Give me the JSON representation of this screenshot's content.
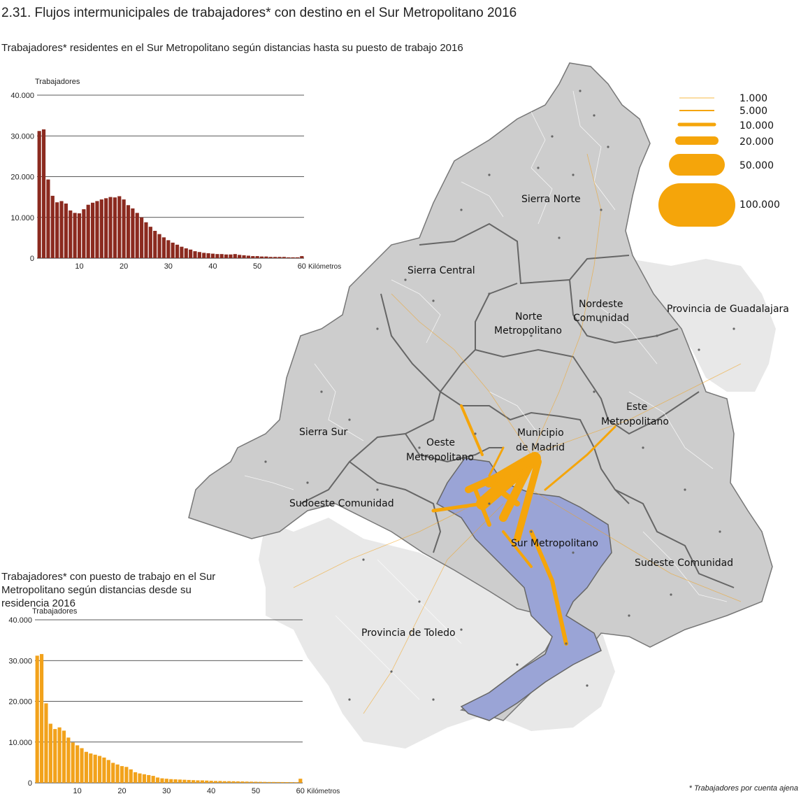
{
  "title": "2.31. Flujos intermunicipales de trabajadores* con destino en el Sur Metropolitano 2016",
  "footnote": "* Trabajadores por cuenta ajena",
  "colors": {
    "dark_bar": "#8b2a1f",
    "orange_bar": "#f2a21b",
    "flow": "#f5a50a",
    "sur": "#9aa4d6",
    "zone": "#cfcfcf",
    "outside": "#e9e9e9"
  },
  "chart_data": [
    {
      "type": "bar",
      "title": "Trabajadores* residentes en el Sur Metropolitano según distancias hasta su puesto de trabajo 2016",
      "ylabel": "Trabajadores",
      "xlabel": "Kilómetros",
      "ylim": [
        0,
        40000
      ],
      "yticks": [
        "0",
        "10.000",
        "20.000",
        "30.000",
        "40.000"
      ],
      "xticks": [
        "10",
        "20",
        "30",
        "40",
        "50",
        "60"
      ],
      "grid": true,
      "color": "#8b2a1f",
      "x": [
        1,
        2,
        3,
        4,
        5,
        6,
        7,
        8,
        9,
        10,
        11,
        12,
        13,
        14,
        15,
        16,
        17,
        18,
        19,
        20,
        21,
        22,
        23,
        24,
        25,
        26,
        27,
        28,
        29,
        30,
        31,
        32,
        33,
        34,
        35,
        36,
        37,
        38,
        39,
        40,
        41,
        42,
        43,
        44,
        45,
        46,
        47,
        48,
        49,
        50,
        51,
        52,
        53,
        54,
        55,
        56,
        57,
        58,
        59,
        60
      ],
      "values": [
        31200,
        31600,
        19300,
        15300,
        13700,
        14000,
        13400,
        11700,
        11100,
        11000,
        12000,
        13100,
        13600,
        14000,
        14400,
        14700,
        15000,
        14900,
        15200,
        14400,
        13000,
        12200,
        11100,
        10000,
        8800,
        7700,
        6700,
        5900,
        5100,
        4400,
        3800,
        3300,
        2800,
        2400,
        2100,
        1700,
        1500,
        1300,
        1200,
        1100,
        1000,
        1000,
        900,
        900,
        1000,
        800,
        700,
        600,
        500,
        500,
        400,
        400,
        300,
        300,
        300,
        300,
        200,
        200,
        200,
        500
      ]
    },
    {
      "type": "bar",
      "title": "Trabajadores* con puesto de trabajo en el Sur Metropolitano según distancias desde su residencia 2016",
      "ylabel": "Trabajadores",
      "xlabel": "Kilómetros",
      "ylim": [
        0,
        40000
      ],
      "yticks": [
        "0",
        "10.000",
        "20.000",
        "30.000",
        "40.000"
      ],
      "xticks": [
        "10",
        "20",
        "30",
        "40",
        "50",
        "60"
      ],
      "grid": true,
      "color": "#f2a21b",
      "x": [
        1,
        2,
        3,
        4,
        5,
        6,
        7,
        8,
        9,
        10,
        11,
        12,
        13,
        14,
        15,
        16,
        17,
        18,
        19,
        20,
        21,
        22,
        23,
        24,
        25,
        26,
        27,
        28,
        29,
        30,
        31,
        32,
        33,
        34,
        35,
        36,
        37,
        38,
        39,
        40,
        41,
        42,
        43,
        44,
        45,
        46,
        47,
        48,
        49,
        50,
        51,
        52,
        53,
        54,
        55,
        56,
        57,
        58,
        59,
        60
      ],
      "values": [
        31200,
        31600,
        19500,
        14500,
        13200,
        13600,
        12800,
        11100,
        9900,
        9200,
        8500,
        7600,
        7200,
        6900,
        6600,
        6200,
        5600,
        4900,
        4500,
        4100,
        3900,
        3300,
        2600,
        2300,
        2100,
        1900,
        1700,
        1300,
        1100,
        1000,
        900,
        850,
        800,
        750,
        700,
        650,
        600,
        600,
        550,
        500,
        450,
        450,
        400,
        400,
        380,
        350,
        330,
        300,
        280,
        260,
        240,
        220,
        200,
        200,
        190,
        180,
        170,
        160,
        150,
        1000
      ]
    }
  ],
  "map": {
    "zones": [
      {
        "name": "Sierra Norte"
      },
      {
        "name": "Sierra Central"
      },
      {
        "name": "Nordeste Comunidad"
      },
      {
        "name": "Norte Metropolitano"
      },
      {
        "name": "Provincia de Guadalajara"
      },
      {
        "name": "Este Metropolitano"
      },
      {
        "name": "Sierra Sur"
      },
      {
        "name": "Municipio de Madrid"
      },
      {
        "name": "Oeste Metropolitano"
      },
      {
        "name": "Sudoeste Comunidad"
      },
      {
        "name": "Sur Metropolitano"
      },
      {
        "name": "Sudeste Comunidad"
      },
      {
        "name": "Provincia de Toledo"
      }
    ],
    "legend": [
      "1.000",
      "5.000",
      "10.000",
      "20.000",
      "50.000",
      "100.000"
    ]
  }
}
